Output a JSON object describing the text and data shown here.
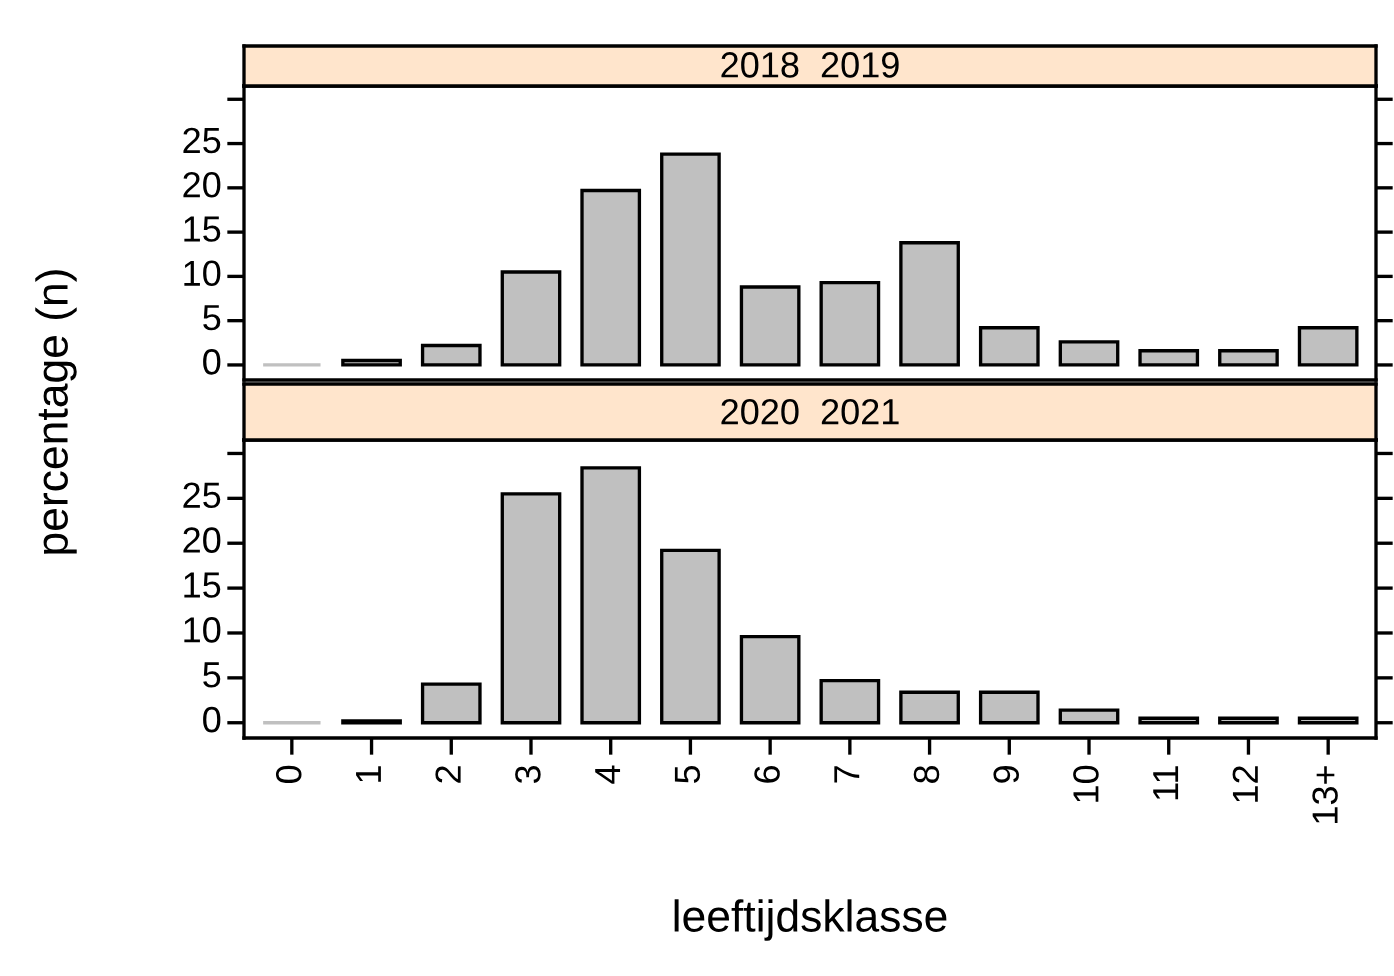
{
  "chart_data": [
    {
      "type": "bar",
      "title": "2018  2019",
      "ylabel": "percentage (n)",
      "categories": [
        null,
        null,
        null,
        null,
        null,
        null,
        null,
        null,
        null,
        null,
        null,
        null,
        null,
        null
      ],
      "values": [
        0,
        0.5,
        2.2,
        10.5,
        19.7,
        23.8,
        8.8,
        9.3,
        13.8,
        4.2,
        2.6,
        1.6,
        1.6,
        4.2
      ],
      "color": "#c0c0c0",
      "ylim": [
        -1.7,
        31.5
      ],
      "yticks": [
        0,
        5,
        10,
        15,
        20,
        25,
        {
          "value": 30,
          "label": null
        }
      ],
      "tick_labels": "y",
      "grid": false
    },
    {
      "type": "bar",
      "title": "2020  2021",
      "xlabel": "leeftijdsklasse",
      "categories": [
        "0",
        "1",
        "2",
        "3",
        "4",
        "5",
        "6",
        "7",
        "8",
        "9",
        "10",
        "11",
        "12",
        "13+"
      ],
      "values": [
        0,
        0.2,
        4.3,
        25.5,
        28.4,
        19.2,
        9.6,
        4.7,
        3.4,
        3.4,
        1.4,
        0.5,
        0.5,
        0.5
      ],
      "color": "#c0c0c0",
      "ylim": [
        -1.7,
        31.5
      ],
      "yticks": [
        0,
        5,
        10,
        15,
        20,
        25,
        {
          "value": 30,
          "label": null
        }
      ],
      "grid": false
    }
  ]
}
